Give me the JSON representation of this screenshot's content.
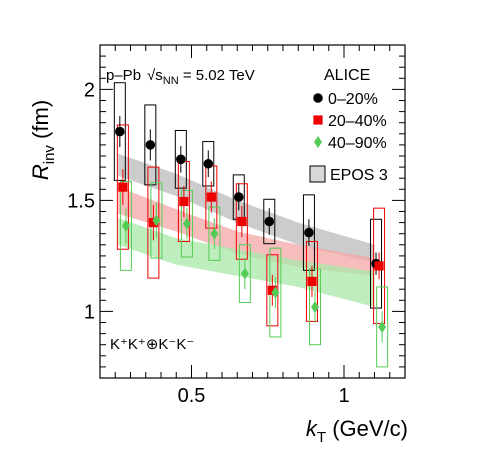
{
  "chart_data": {
    "type": "scatter",
    "title": "",
    "system_label": "p–Pb",
    "energy_label": "√s",
    "energy_subscript": "NN",
    "energy_value": " = 5.02 TeV",
    "experiment": "ALICE",
    "pair_label": "K⁺K⁺⊕K⁻K⁻",
    "xlabel_main": "k",
    "xlabel_sub": "T",
    "xlabel_unit": " (GeV/c)",
    "ylabel_main": "R",
    "ylabel_sub": "inv",
    "ylabel_unit": " (fm)",
    "xlim": [
      0.2,
      1.2
    ],
    "ylim": [
      0.7,
      2.2
    ],
    "xticks": [
      0.5,
      1
    ],
    "xtick_labels": [
      "0.5",
      "1"
    ],
    "yticks": [
      1,
      1.5,
      2
    ],
    "ytick_labels": [
      "1",
      "1.5",
      "2"
    ],
    "legend_position": "top-right",
    "series": [
      {
        "name": "0–20%",
        "marker": "circle",
        "color": "#000000",
        "x": [
          0.265,
          0.365,
          0.465,
          0.555,
          0.655,
          0.755,
          0.885,
          1.105
        ],
        "y": [
          1.81,
          1.75,
          1.685,
          1.665,
          1.515,
          1.405,
          1.355,
          1.215
        ],
        "stat_err": [
          0.07,
          0.07,
          0.06,
          0.06,
          0.06,
          0.06,
          0.06,
          0.05
        ],
        "sys_err": [
          0.22,
          0.18,
          0.13,
          0.1,
          0.1,
          0.1,
          0.17,
          0.2
        ]
      },
      {
        "name": "20–40%",
        "marker": "square",
        "color": "#ee0000",
        "x": [
          0.275,
          0.375,
          0.475,
          0.565,
          0.665,
          0.765,
          0.895,
          1.115
        ],
        "y": [
          1.56,
          1.4,
          1.495,
          1.515,
          1.405,
          1.095,
          1.135,
          1.205
        ],
        "stat_err": [
          0.08,
          0.08,
          0.07,
          0.07,
          0.07,
          0.07,
          0.07,
          0.06
        ],
        "sys_err": [
          0.28,
          0.25,
          0.18,
          0.14,
          0.17,
          0.16,
          0.18,
          0.26
        ]
      },
      {
        "name": "40–90%",
        "marker": "diamond",
        "color": "#55cc55",
        "x": [
          0.285,
          0.385,
          0.485,
          0.575,
          0.675,
          0.775,
          0.905,
          1.125
        ],
        "y": [
          1.385,
          1.41,
          1.395,
          1.35,
          1.17,
          1.085,
          1.02,
          0.93
        ],
        "stat_err": [
          0.08,
          0.08,
          0.07,
          0.07,
          0.07,
          0.07,
          0.07,
          0.07
        ],
        "sys_err": [
          0.2,
          0.17,
          0.15,
          0.12,
          0.13,
          0.2,
          0.17,
          0.18
        ]
      }
    ],
    "model_label": "EPOS 3",
    "model_bands": [
      {
        "for": "0–20%",
        "color": "#bbbbbb",
        "x": [
          0.26,
          0.45,
          0.65,
          0.85,
          1.1
        ],
        "y": [
          1.66,
          1.57,
          1.45,
          1.35,
          1.26
        ],
        "width": [
          0.05,
          0.05,
          0.05,
          0.05,
          0.04
        ]
      },
      {
        "for": "20–40%",
        "color": "#f4a6a6",
        "x": [
          0.26,
          0.45,
          0.65,
          0.85,
          1.1
        ],
        "y": [
          1.5,
          1.41,
          1.31,
          1.25,
          1.2
        ],
        "width": [
          0.06,
          0.05,
          0.05,
          0.05,
          0.04
        ]
      },
      {
        "for": "40–90%",
        "color": "#a8e8a8",
        "x": [
          0.26,
          0.45,
          0.65,
          0.85,
          1.1
        ],
        "y": [
          1.36,
          1.27,
          1.22,
          1.17,
          1.1
        ],
        "width": [
          0.06,
          0.06,
          0.06,
          0.06,
          0.08
        ]
      }
    ]
  }
}
